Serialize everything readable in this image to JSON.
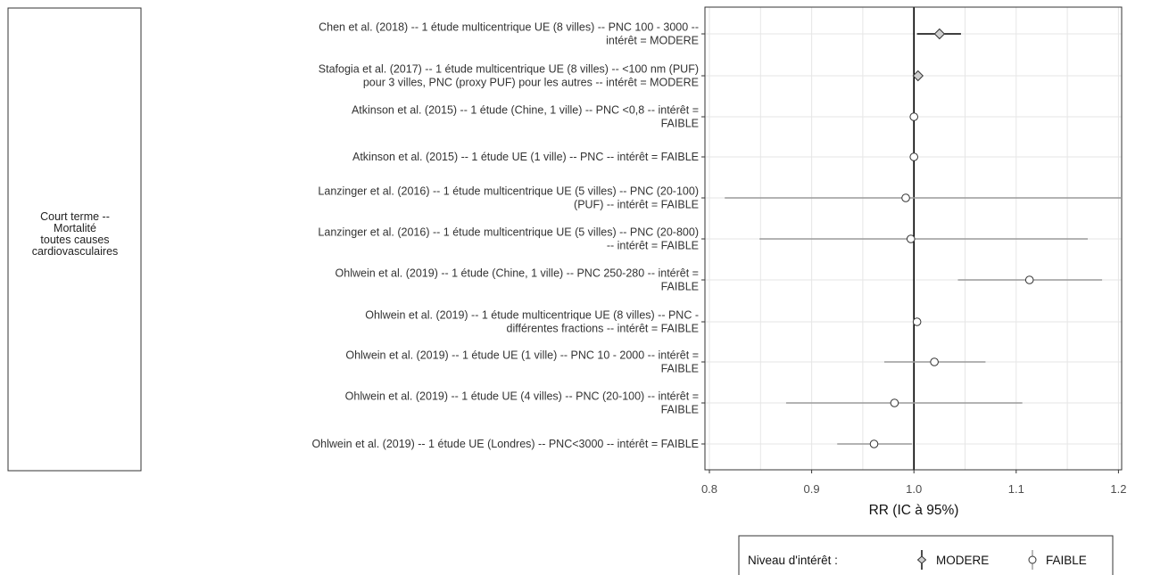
{
  "chart_data": {
    "type": "forest",
    "group_label": [
      "Court terme --",
      "Mortalité",
      "toutes causes",
      "cardiovasculaires"
    ],
    "xlabel": "RR (IC à 95%)",
    "xlim": [
      0.8,
      1.22
    ],
    "xticks": [
      "0.8",
      "0.9",
      "1.0",
      "1.1",
      "1.2"
    ],
    "reference_line": 1.0,
    "grid": true,
    "studies": [
      {
        "label": [
          "Chen et al. (2018) -- 1 étude multicentrique UE (8 villes) -- PNC 100 - 3000 --",
          "intérêt = MODERE"
        ],
        "rr": 1.025,
        "lo": 1.003,
        "hi": 1.046,
        "level": "MODERE"
      },
      {
        "label": [
          "Stafogia et al. (2017) -- 1 étude multicentrique UE (8 villes) -- <100 nm (PUF)",
          "pour 3 villes, PNC (proxy PUF) pour les autres -- intérêt = MODERE"
        ],
        "rr": 1.004,
        "lo": 1.001,
        "hi": 1.007,
        "level": "MODERE"
      },
      {
        "label": [
          "Atkinson et al. (2015) -- 1 étude (Chine, 1 ville) -- PNC <0,8 -- intérêt =",
          "FAIBLE"
        ],
        "rr": 1.0,
        "lo": 0.998,
        "hi": 1.002,
        "level": "FAIBLE"
      },
      {
        "label": [
          "Atkinson et al. (2015) -- 1 étude UE (1 ville) -- PNC -- intérêt = FAIBLE"
        ],
        "rr": 1.0,
        "lo": 0.998,
        "hi": 1.002,
        "level": "FAIBLE"
      },
      {
        "label": [
          "Lanzinger et al. (2016) -- 1 étude multicentrique UE (5 villes) -- PNC (20-100)",
          "(PUF) -- intérêt = FAIBLE"
        ],
        "rr": 0.992,
        "lo": 0.815,
        "hi": 1.21,
        "level": "FAIBLE"
      },
      {
        "label": [
          "Lanzinger et al. (2016) -- 1 étude multicentrique UE (5 villes) -- PNC (20-800)",
          "-- intérêt = FAIBLE"
        ],
        "rr": 0.997,
        "lo": 0.849,
        "hi": 1.17,
        "level": "FAIBLE"
      },
      {
        "label": [
          "Ohlwein et al. (2019) -- 1 étude (Chine, 1 ville) -- PNC 250-280 -- intérêt =",
          "FAIBLE"
        ],
        "rr": 1.113,
        "lo": 1.043,
        "hi": 1.184,
        "level": "FAIBLE"
      },
      {
        "label": [
          "Ohlwein et al. (2019) -- 1 étude multicentrique UE (8 villes) -- PNC -",
          "différentes fractions -- intérêt = FAIBLE"
        ],
        "rr": 1.003,
        "lo": 1.0,
        "hi": 1.006,
        "level": "FAIBLE"
      },
      {
        "label": [
          "Ohlwein et al. (2019) -- 1 étude UE (1 ville) -- PNC 10 - 2000 -- intérêt =",
          "FAIBLE"
        ],
        "rr": 1.02,
        "lo": 0.971,
        "hi": 1.07,
        "level": "FAIBLE"
      },
      {
        "label": [
          "Ohlwein et al. (2019) -- 1 étude UE (4 villes) -- PNC (20-100) -- intérêt =",
          "FAIBLE"
        ],
        "rr": 0.981,
        "lo": 0.875,
        "hi": 1.106,
        "level": "FAIBLE"
      },
      {
        "label": [
          "Ohlwein et al. (2019) -- 1 étude UE (Londres) -- PNC<3000 -- intérêt = FAIBLE"
        ],
        "rr": 0.961,
        "lo": 0.925,
        "hi": 0.998,
        "level": "FAIBLE"
      }
    ],
    "legend": {
      "title": "Niveau d'intérêt :",
      "items": [
        {
          "label": "MODERE",
          "shape": "diamond"
        },
        {
          "label": "FAIBLE",
          "shape": "circle"
        }
      ],
      "placement": "bottom"
    },
    "colors": {
      "MODERE_bar": "#000000",
      "FAIBLE_bar": "#9a9a9a",
      "marker_fill": "#ffffff",
      "marker_stroke": "#333333",
      "grid": "#e6e6e6",
      "panel_border": "#333333"
    }
  }
}
